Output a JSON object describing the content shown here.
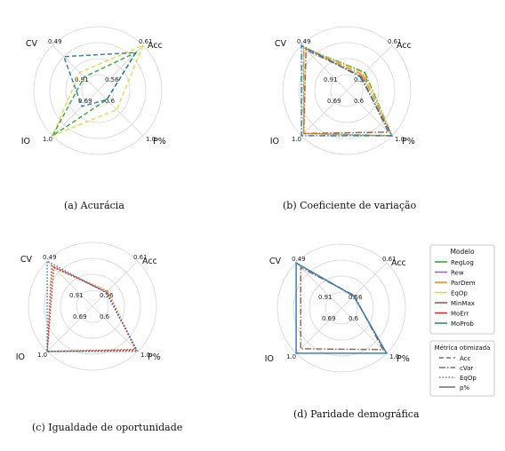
{
  "colors": {
    "RegLog": "#2ca02c",
    "Rew": "#9467bd",
    "ParDem": "#ff7f0e",
    "EqOp": "#dbdb3d",
    "MinMax": "#8c564b",
    "MoErr": "#d62728",
    "MoProb": "#1f77b4"
  },
  "legend_modelo": {
    "title": "Modelo",
    "items": [
      "RegLog",
      "Rew",
      "ParDem",
      "EqOp",
      "MinMax",
      "MoErr",
      "MoProb"
    ]
  },
  "legend_metrica": {
    "title": "Métrica otimizada",
    "items": [
      {
        "label": "Acc",
        "dash": "dashed"
      },
      {
        "label": "cVar",
        "dash": "dashdot"
      },
      {
        "label": "EqOp",
        "dash": "dotted"
      },
      {
        "label": "p%",
        "dash": "solid"
      }
    ]
  },
  "chart_data": [
    {
      "type": "radar",
      "caption": "(a) Acurácia",
      "axes": [
        "Acc",
        "P%",
        "IO",
        "CV"
      ],
      "axis_max_labels": [
        "0.61",
        "1.0",
        "1.0",
        "0.49"
      ],
      "axis_min_labels": [
        "0.56",
        "0.6",
        "0.69",
        "0.91"
      ],
      "grid": true,
      "series": [
        {
          "model": "EqOp",
          "metric": "Acc",
          "values": [
            1.0,
            0.42,
            1.0,
            0.4
          ]
        },
        {
          "model": "RegLog",
          "metric": "Acc",
          "values": [
            0.84,
            0.2,
            1.0,
            0.3
          ]
        },
        {
          "model": "MoProb",
          "metric": "Acc",
          "values": [
            0.84,
            0.2,
            0.35,
            0.75
          ]
        }
      ]
    },
    {
      "type": "radar",
      "caption": "(b) Coeficiente de variação",
      "axes": [
        "Acc",
        "P%",
        "IO",
        "CV"
      ],
      "axis_max_labels": [
        "0.61",
        "1.0",
        "1.0",
        "0.49"
      ],
      "axis_min_labels": [
        "0.56",
        "0.6",
        "0.69",
        "0.91"
      ],
      "grid": true,
      "series": [
        {
          "model": "RegLog",
          "metric": "cVar",
          "values": [
            0.4,
            1.0,
            0.95,
            0.95
          ]
        },
        {
          "model": "EqOp",
          "metric": "cVar",
          "values": [
            0.38,
            1.0,
            0.95,
            0.95
          ]
        },
        {
          "model": "MinMax",
          "metric": "cVar",
          "values": [
            0.32,
            0.92,
            0.95,
            0.9
          ]
        },
        {
          "model": "ParDem",
          "metric": "cVar",
          "values": [
            0.35,
            1.0,
            0.95,
            0.95
          ]
        },
        {
          "model": "MoProb",
          "metric": "cVar",
          "values": [
            0.3,
            1.0,
            1.0,
            1.0
          ]
        }
      ]
    },
    {
      "type": "radar",
      "caption": "(c) Igualdade de oportunidade",
      "axes": [
        "Acc",
        "P%",
        "IO",
        "CV"
      ],
      "axis_max_labels": [
        "0.61",
        "1.0",
        "1.0",
        "0.49"
      ],
      "axis_min_labels": [
        "0.56",
        "0.6",
        "0.69",
        "0.91"
      ],
      "grid": true,
      "series": [
        {
          "model": "ParDem",
          "metric": "EqOp",
          "values": [
            0.34,
            0.97,
            1.0,
            0.88
          ]
        },
        {
          "model": "MinMax",
          "metric": "EqOp",
          "values": [
            0.32,
            0.95,
            1.0,
            0.85
          ]
        },
        {
          "model": "MoErr",
          "metric": "EqOp",
          "values": [
            0.31,
            0.97,
            1.0,
            0.9
          ]
        },
        {
          "model": "MoProb",
          "metric": "EqOp",
          "values": [
            0.3,
            1.0,
            1.0,
            1.0
          ]
        }
      ]
    },
    {
      "type": "radar",
      "caption": "(d) Paridade demográfica",
      "axes": [
        "Acc",
        "P%",
        "IO",
        "CV"
      ],
      "axis_max_labels": [
        "0.61",
        "1.0",
        "1.0",
        "0.49"
      ],
      "axis_min_labels": [
        "0.56",
        "0.6",
        "0.69",
        "0.91"
      ],
      "grid": true,
      "series": [
        {
          "model": "MinMax",
          "metric": "cVar",
          "values": [
            0.28,
            0.92,
            0.9,
            0.9
          ]
        },
        {
          "model": "MoProb",
          "metric": "p%",
          "values": [
            0.27,
            1.0,
            1.0,
            1.0
          ]
        }
      ]
    }
  ]
}
